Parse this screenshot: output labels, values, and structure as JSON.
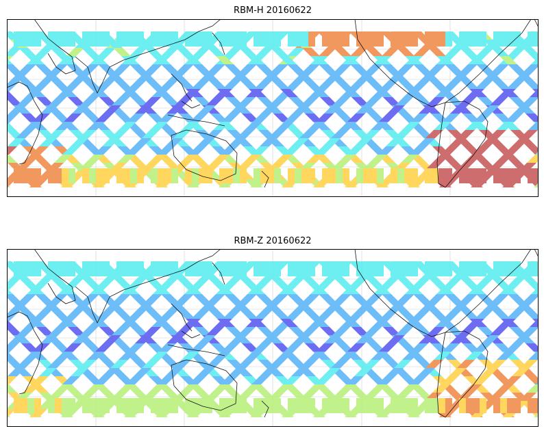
{
  "chart_data": [
    {
      "type": "heatmap",
      "title": "RBM-H 20160622",
      "grid": true,
      "colors": {
        "low": "#5a5af0",
        "mid_low": "#5ab4f8",
        "mid": "#5aecf0",
        "mid_high": "#b8f07a",
        "high": "#ffd24a",
        "very_high": "#f08a4a",
        "max": "#c85a5a"
      },
      "swath_level_by_latitude_band": [
        {
          "band": "north",
          "level": 0.3
        },
        {
          "band": "north-mid",
          "level": 0.12
        },
        {
          "band": "tropics",
          "level": 0.05
        },
        {
          "band": "south-mid",
          "level": 0.18
        },
        {
          "band": "south",
          "level": 0.55
        }
      ],
      "hotspots": [
        {
          "region": "north-pacific-east",
          "level": 0.75
        },
        {
          "region": "south-atlantic",
          "level": 0.95
        },
        {
          "region": "south-indian-west",
          "level": 0.8
        }
      ]
    },
    {
      "type": "heatmap",
      "title": "RBM-Z 20160622",
      "grid": true,
      "colors": {
        "low": "#5a5af0",
        "mid_low": "#5ab4f8",
        "mid": "#5aecf0",
        "mid_high": "#b8f07a",
        "high": "#ffd24a",
        "very_high": "#f08a4a",
        "max": "#c85a5a"
      },
      "swath_level_by_latitude_band": [
        {
          "band": "north",
          "level": 0.25
        },
        {
          "band": "north-mid",
          "level": 0.1
        },
        {
          "band": "tropics",
          "level": 0.05
        },
        {
          "band": "south-mid",
          "level": 0.15
        },
        {
          "band": "south",
          "level": 0.45
        }
      ],
      "hotspots": [
        {
          "region": "south-atlantic",
          "level": 0.7
        },
        {
          "region": "south-indian-west",
          "level": 0.55
        }
      ]
    }
  ]
}
